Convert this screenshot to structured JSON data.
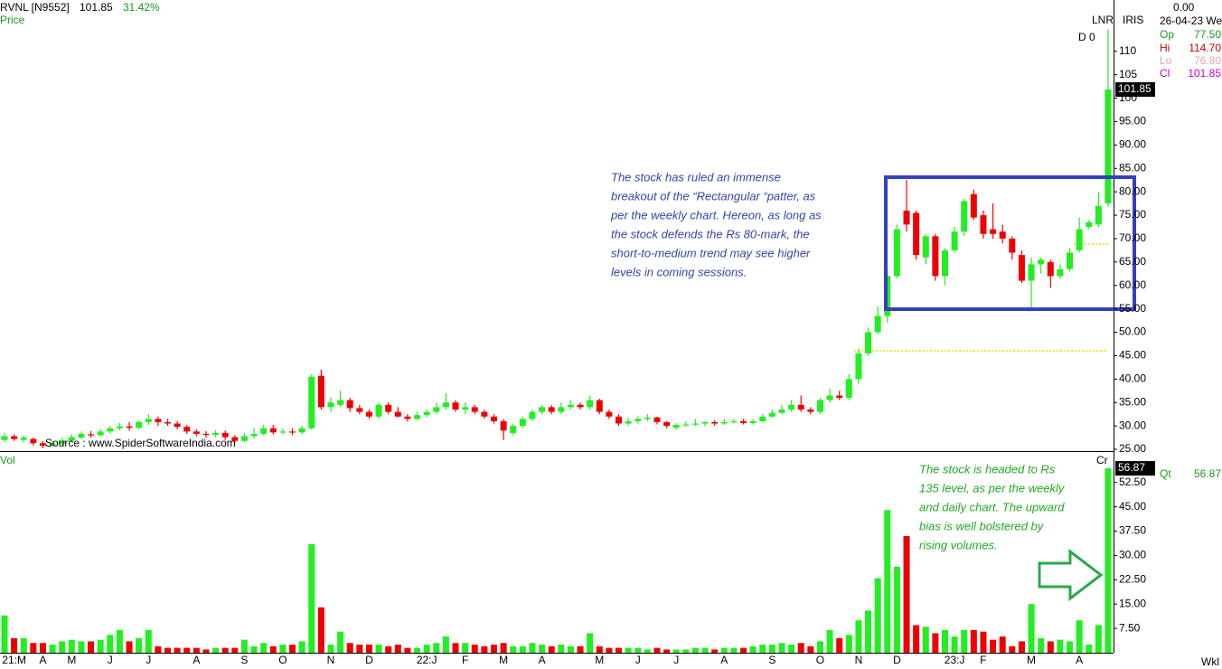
{
  "header": {
    "symbol": "RVNL [N9552]",
    "last": "101.85",
    "change": "31.42%",
    "source": "Source : www.SpiderSoftwareIndia.com",
    "lnr": "LNR",
    "iris": "IRIS",
    "d0": "D 0",
    "top_value": "0.00",
    "date": "26-04-23 We",
    "cr": "Cr",
    "period": "Wkl"
  },
  "info": {
    "rows": [
      [
        "Op",
        "77.50"
      ],
      [
        "Hi",
        "114.70"
      ],
      [
        "Lo",
        "76.80"
      ],
      [
        "Cl",
        "101.85"
      ]
    ],
    "qt": [
      "Qt",
      "56.87"
    ]
  },
  "chart_data": [
    {
      "type": "candlestick",
      "title": "Price",
      "up_color": "#22ee22",
      "down_color": "#ee0000",
      "categories": [
        null,
        "21:M",
        null,
        null,
        "A",
        null,
        null,
        "M",
        null,
        null,
        null,
        "J",
        null,
        null,
        null,
        "J",
        null,
        null,
        null,
        null,
        "A",
        null,
        null,
        null,
        null,
        "S",
        null,
        null,
        null,
        "O",
        null,
        null,
        null,
        null,
        "N",
        null,
        null,
        null,
        "D",
        null,
        null,
        null,
        null,
        null,
        "22:J",
        null,
        null,
        null,
        "F",
        null,
        null,
        null,
        "M",
        null,
        null,
        null,
        "A",
        null,
        null,
        null,
        null,
        null,
        "M",
        null,
        null,
        null,
        "J",
        null,
        null,
        null,
        "J",
        null,
        null,
        null,
        null,
        "A",
        null,
        null,
        null,
        null,
        "S",
        null,
        null,
        null,
        null,
        "O",
        null,
        null,
        null,
        "N",
        null,
        null,
        null,
        "D",
        null,
        null,
        null,
        null,
        null,
        "23:J",
        null,
        null,
        "F",
        null,
        null,
        null,
        null,
        "M",
        null,
        null,
        null,
        null,
        "A",
        null,
        null,
        null
      ],
      "open": [
        27.0,
        27.8,
        27.0,
        27.2,
        26.3,
        25.8,
        26.2,
        26.8,
        27.5,
        28.2,
        28.0,
        28.8,
        29.5,
        29.9,
        29.6,
        30.8,
        31.5,
        30.8,
        30.5,
        29.8,
        28.8,
        28.3,
        28.1,
        28.5,
        27.6,
        26.8,
        27.8,
        28.3,
        29.5,
        28.6,
        28.8,
        28.6,
        29.5,
        40.7,
        34.0,
        34.5,
        35.5,
        33.8,
        33.0,
        32.0,
        34.5,
        33.0,
        32.0,
        31.5,
        32.3,
        33.0,
        34.0,
        35.0,
        33.5,
        34.0,
        33.0,
        32.0,
        31.0,
        28.5,
        30.0,
        31.5,
        33.0,
        34.0,
        33.0,
        34.0,
        34.5,
        34.0,
        35.5,
        33.0,
        32.0,
        30.5,
        31.0,
        31.5,
        31.8,
        30.8,
        29.6,
        30.2,
        30.3,
        30.5,
        30.8,
        30.5,
        30.8,
        31.0,
        30.6,
        31.0,
        32.0,
        32.8,
        33.5,
        34.5,
        33.5,
        33.0,
        35.5,
        36.5,
        36.0,
        40.0,
        45.5,
        50.0,
        53.5,
        62.0,
        76,
        75.5,
        66,
        70.5,
        62,
        67.5,
        71.5,
        79.5,
        75,
        72,
        71.5,
        70,
        66.5,
        61,
        64.5,
        65,
        62,
        63.5,
        67.5,
        72.5,
        73,
        77.5
      ],
      "high": [
        28.5,
        28.2,
        28.0,
        27.5,
        26.8,
        26.8,
        27.5,
        28.2,
        28.8,
        28.9,
        29.3,
        30.0,
        30.6,
        30.8,
        31.2,
        32.5,
        32.0,
        31.5,
        31.0,
        30.2,
        29.3,
        28.9,
        29.1,
        29.0,
        28.0,
        28.5,
        29.5,
        30.2,
        30.2,
        29.5,
        29.5,
        30.0,
        41.0,
        42.0,
        36.0,
        37.5,
        36.0,
        34.5,
        33.5,
        35.0,
        35.0,
        34.0,
        32.5,
        33.0,
        33.5,
        35.0,
        37.0,
        35.5,
        35.0,
        34.5,
        33.5,
        32.5,
        31.5,
        30.5,
        32.0,
        33.5,
        34.5,
        34.5,
        35.0,
        35.5,
        35.0,
        36.5,
        35.8,
        33.5,
        32.5,
        31.8,
        32.0,
        32.5,
        32.0,
        31.0,
        30.6,
        31.0,
        31.5,
        31.0,
        31.2,
        31.5,
        31.5,
        31.5,
        31.5,
        32.5,
        33.5,
        34.5,
        35.5,
        36.5,
        34.0,
        36.0,
        38.0,
        37.5,
        41.0,
        46.5,
        51.0,
        55.5,
        63.5,
        73.0,
        82.5,
        76,
        71,
        71,
        68,
        72.5,
        78.5,
        80.5,
        76,
        77.5,
        73,
        70.5,
        67.5,
        66,
        66,
        65.5,
        64.5,
        68,
        74.5,
        74,
        80,
        114.7
      ],
      "low": [
        26.5,
        26.8,
        26.5,
        25.8,
        25.2,
        25.5,
        25.9,
        26.5,
        27.2,
        27.5,
        27.8,
        28.4,
        29.0,
        29.0,
        29.3,
        30.2,
        30.0,
        30.0,
        29.3,
        28.3,
        27.8,
        27.5,
        27.6,
        27.0,
        26.3,
        26.5,
        27.3,
        28.0,
        28.2,
        28.2,
        28.0,
        28.3,
        29.2,
        33.5,
        33.0,
        34.0,
        33.0,
        32.5,
        31.5,
        31.5,
        32.5,
        31.8,
        31.0,
        31.2,
        31.8,
        32.5,
        33.5,
        33.0,
        32.5,
        32.5,
        31.5,
        30.5,
        27.0,
        28.0,
        29.5,
        31.0,
        32.5,
        32.5,
        32.5,
        33.5,
        33.5,
        33.5,
        32.5,
        31.5,
        30.0,
        30.0,
        30.5,
        31.0,
        30.3,
        29.5,
        29.2,
        29.8,
        30.0,
        30.0,
        30.0,
        30.2,
        30.5,
        30.3,
        30.3,
        30.8,
        31.8,
        32.5,
        33.0,
        33.0,
        32.5,
        32.5,
        35.0,
        35.5,
        35.5,
        39.0,
        45.0,
        49.5,
        52.0,
        61.5,
        71.5,
        65.5,
        64.5,
        61,
        60,
        67,
        70.5,
        74,
        70,
        70,
        69,
        65.5,
        60.5,
        55,
        62.5,
        59.5,
        61.5,
        63,
        67,
        72,
        72.5,
        76.8
      ],
      "close": [
        27.8,
        27.2,
        27.5,
        26.3,
        25.8,
        26.2,
        26.9,
        27.6,
        28.3,
        28.0,
        28.8,
        29.5,
        29.9,
        29.6,
        30.8,
        31.5,
        30.8,
        30.5,
        29.8,
        28.8,
        28.3,
        28.1,
        28.5,
        27.6,
        26.8,
        27.8,
        28.3,
        29.5,
        28.6,
        28.8,
        28.6,
        29.5,
        40.5,
        34.0,
        35.0,
        35.5,
        33.8,
        33.0,
        32.0,
        34.5,
        33.0,
        32.0,
        31.5,
        32.3,
        33.0,
        34.0,
        35.0,
        33.5,
        34.0,
        33.0,
        32.0,
        31.0,
        29.0,
        30.0,
        31.5,
        33.0,
        34.0,
        33.0,
        34.0,
        34.5,
        34.0,
        35.5,
        33.0,
        32.0,
        30.5,
        31.0,
        31.5,
        31.8,
        30.8,
        30.0,
        30.2,
        30.3,
        30.5,
        30.8,
        30.5,
        30.8,
        31.0,
        30.6,
        31.0,
        32.0,
        32.8,
        33.5,
        34.5,
        33.5,
        33.0,
        35.5,
        36.5,
        36.0,
        40.0,
        45.5,
        50.0,
        53.5,
        62.0,
        72.0,
        73,
        66.5,
        70.5,
        62,
        67.5,
        71.5,
        78,
        74.5,
        71,
        71,
        70,
        67,
        61,
        64.5,
        65.5,
        62,
        63.5,
        67,
        72,
        73.5,
        77,
        101.85
      ],
      "ylim": [
        25,
        120
      ],
      "yticks": [
        {
          "value": 25,
          "label": "25.00"
        },
        {
          "value": 30,
          "label": "30.00"
        },
        {
          "value": 35,
          "label": "35.00"
        },
        {
          "value": 40,
          "label": "40.00"
        },
        {
          "value": 45,
          "label": "45.00"
        },
        {
          "value": 50,
          "label": "50.00"
        },
        {
          "value": 55,
          "label": "55.00"
        },
        {
          "value": 60,
          "label": "60.00"
        },
        {
          "value": 65,
          "label": "65.00"
        },
        {
          "value": 70,
          "label": "70.00"
        },
        {
          "value": 75,
          "label": "75.00"
        },
        {
          "value": 80,
          "label": "80.00"
        },
        {
          "value": 85,
          "label": "85.00"
        },
        {
          "value": 90,
          "label": "90.00"
        },
        {
          "value": 95,
          "label": "95.00"
        },
        100,
        105,
        110
      ],
      "annotation": [
        "The stock has ruled an immense",
        "breakout of the “Rectangular “patter, as",
        "per the weekly chart. Hereon, as long as",
        "the stock defends the Rs 80-mark, the",
        "short-to-medium trend may see higher",
        "levels in coming sessions."
      ]
    },
    {
      "type": "bar",
      "title": "Vol",
      "values": [
        11.5,
        4.5,
        4.5,
        3,
        3,
        2.5,
        3.5,
        4,
        3.5,
        3.5,
        4,
        5.5,
        7,
        3.5,
        4.5,
        7,
        2,
        1.5,
        1.5,
        1.5,
        1.5,
        1,
        1.5,
        1.5,
        1.5,
        4,
        2,
        3,
        2,
        2.5,
        2.5,
        3.5,
        33.5,
        14,
        2.5,
        6.5,
        3,
        2.5,
        2.5,
        2.5,
        2,
        2.5,
        1.5,
        1.5,
        2.5,
        3,
        5,
        3,
        3,
        2.5,
        2,
        2.5,
        3,
        2,
        2,
        3,
        2.5,
        2,
        2.5,
        2,
        2,
        6,
        2,
        1.5,
        1.5,
        1.5,
        1.5,
        1,
        1.5,
        1,
        1,
        1,
        1.5,
        1.5,
        1,
        1.5,
        1.5,
        1.5,
        2,
        2.5,
        2.5,
        3,
        2.5,
        3,
        2,
        3.5,
        7,
        4.5,
        5.5,
        10,
        13,
        23,
        44,
        26.5,
        36,
        8.5,
        8,
        6,
        7,
        5,
        7,
        7,
        6.5,
        4,
        5,
        2,
        3.5,
        15,
        4.5,
        3.5,
        4,
        3.5,
        10,
        2.5,
        8.5,
        56.87
      ],
      "ylim": [
        0,
        58
      ],
      "yticks": [
        {
          "value": 7.5,
          "label": "7.50"
        },
        {
          "value": 15,
          "label": "15.00"
        },
        {
          "value": 22.5,
          "label": "22.50"
        },
        {
          "value": 30,
          "label": "30.00"
        },
        {
          "value": 37.5,
          "label": "37.50"
        },
        {
          "value": 45,
          "label": "45.00"
        },
        {
          "value": 52.5,
          "label": "52.50"
        }
      ],
      "annotation": [
        "The stock is headed to Rs",
        "135 level, as per the weekly",
        "and daily chart. The upward",
        "bias is well bolstered by",
        "rising volumes."
      ]
    }
  ]
}
